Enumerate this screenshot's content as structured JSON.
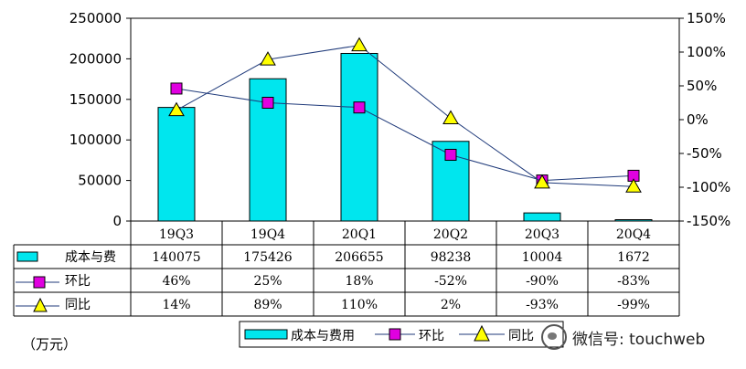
{
  "chart_data": {
    "type": "bar+line",
    "categories": [
      "19Q3",
      "19Q4",
      "20Q1",
      "20Q2",
      "20Q3",
      "20Q4"
    ],
    "series": [
      {
        "name": "成本与费用",
        "type": "bar",
        "axis": "left",
        "values": [
          140075,
          175426,
          206655,
          98238,
          10004,
          1672
        ],
        "color": "#00e6ee"
      },
      {
        "name": "环比",
        "type": "line",
        "axis": "right",
        "marker": "square",
        "values": [
          46,
          25,
          18,
          -52,
          -90,
          -83
        ],
        "color": "#e000e0"
      },
      {
        "name": "同比",
        "type": "line",
        "axis": "right",
        "marker": "triangle",
        "values": [
          14,
          89,
          110,
          2,
          -93,
          -99
        ],
        "color": "#ffff00"
      }
    ],
    "left_axis": {
      "ticks": [
        "250000",
        "200000",
        "150000",
        "100000",
        "50000",
        "0"
      ],
      "ylim": [
        0,
        250000
      ]
    },
    "right_axis": {
      "ticks": [
        "150%",
        "100%",
        "50%",
        "0%",
        "-50%",
        "-100%",
        "-150%"
      ],
      "ylim": [
        -150,
        150
      ]
    },
    "table": {
      "labels": [
        "成本与费",
        "环比",
        "同比"
      ],
      "rows": [
        [
          "140075",
          "175426",
          "206655",
          "98238",
          "10004",
          "1672"
        ],
        [
          "46%",
          "25%",
          "18%",
          "-52%",
          "-90%",
          "-83%"
        ],
        [
          "14%",
          "89%",
          "110%",
          "2%",
          "-93%",
          "-99%"
        ]
      ]
    },
    "legend": [
      "成本与费用",
      "环比",
      "同比"
    ],
    "legend_position": "bottom"
  },
  "unit_label": "（万元）",
  "watermark": "微信号: touchweb"
}
